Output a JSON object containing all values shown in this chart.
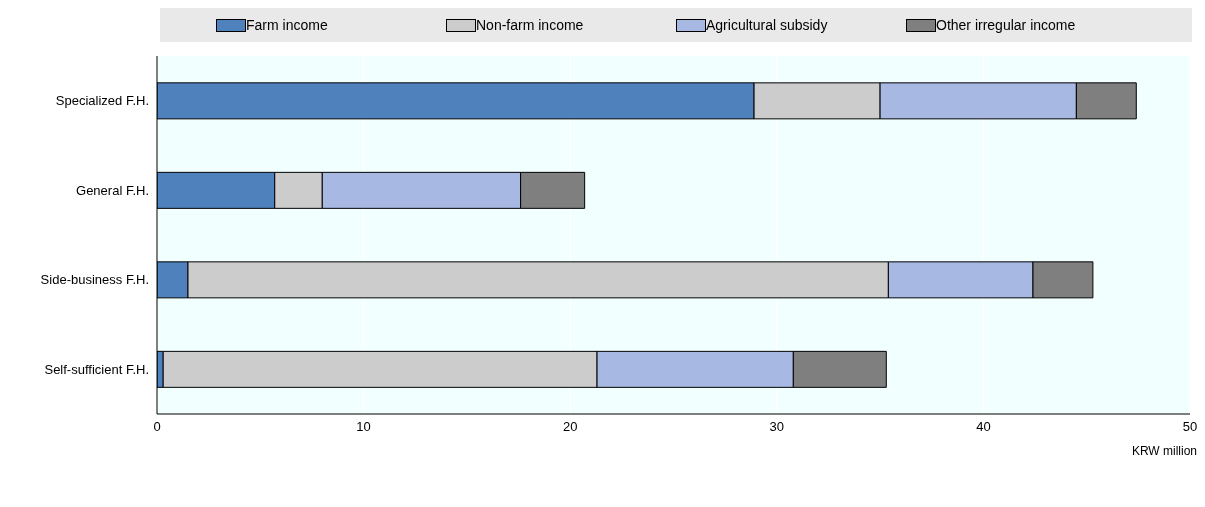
{
  "chart_data": {
    "type": "bar",
    "orientation": "horizontal",
    "stacked": true,
    "xlabel": "KRW million",
    "categories": [
      "Specialized F.H.",
      "General F.H.",
      "Side-business F.H.",
      "Self-sufficient F.H."
    ],
    "series": [
      {
        "name": "Farm income",
        "color": "#4f81bd",
        "values": [
          28.9,
          5.7,
          1.5,
          0.3
        ]
      },
      {
        "name": "Non-farm income",
        "color": "#cccccc",
        "values": [
          6.1,
          2.3,
          33.9,
          21.0
        ]
      },
      {
        "name": "Agricultural subsidy",
        "color": "#a7b9e3",
        "values": [
          9.5,
          9.6,
          7.0,
          9.5
        ]
      },
      {
        "name": "Other irregular income",
        "color": "#7f7f7f",
        "values": [
          2.9,
          3.1,
          2.9,
          4.5
        ]
      }
    ],
    "xlim": [
      0,
      50
    ],
    "xticks": [
      0,
      10,
      20,
      30,
      40,
      50
    ],
    "grid": "x",
    "legend": "top"
  }
}
